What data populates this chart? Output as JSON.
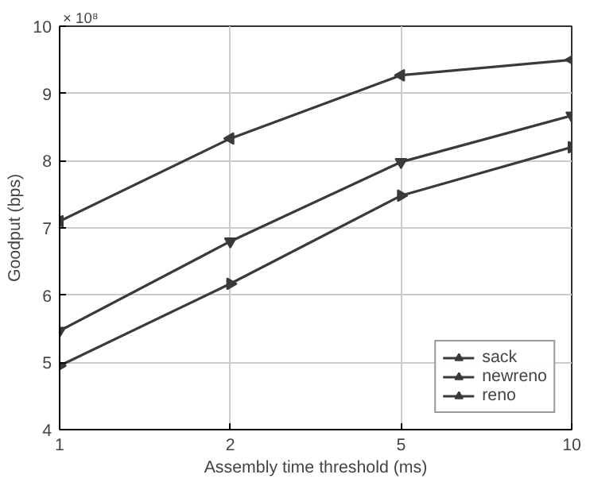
{
  "chart_data": {
    "type": "line",
    "xlabel": "Assembly time threshold (ms)",
    "ylabel": "Goodput (bps)",
    "annotations": [
      "× 10⁸"
    ],
    "categories": [
      "1",
      "2",
      "5",
      "10"
    ],
    "series": [
      {
        "name": "sack",
        "color": "#3a3a3a",
        "values": [
          7.1,
          8.33,
          9.27,
          9.5
        ]
      },
      {
        "name": "newreno",
        "color": "#3a3a3a",
        "values": [
          5.47,
          6.8,
          7.98,
          8.67
        ]
      },
      {
        "name": "reno",
        "color": "#3a3a3a",
        "values": [
          4.95,
          6.17,
          7.48,
          8.2
        ]
      }
    ],
    "ylim": [
      4,
      10
    ],
    "yticks": [
      4,
      5,
      6,
      7,
      8,
      9,
      10
    ],
    "grid": true,
    "legend": "bottom right",
    "marker": "triangle",
    "line_style": "solid"
  }
}
